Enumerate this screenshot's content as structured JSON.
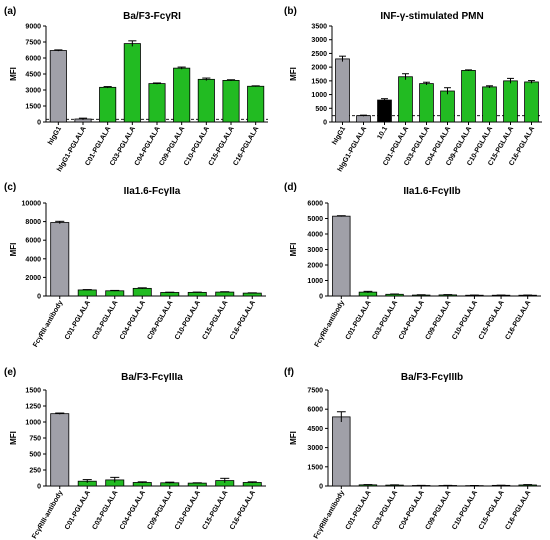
{
  "figure": {
    "panels": [
      "a",
      "b",
      "c",
      "d",
      "e",
      "f"
    ]
  },
  "chart_data": [
    {
      "panel_label": "(a)",
      "type": "bar",
      "title": "Ba/F3-FcγRI",
      "ylabel": "MFI",
      "ylim": [
        0,
        9000
      ],
      "yticks": [
        0,
        1500,
        3000,
        4500,
        6000,
        7500,
        9000
      ],
      "ytick_labels": [
        "0",
        "1500",
        "3000",
        "4500",
        "6000",
        "7500",
        "9000"
      ],
      "dashed_line": 250,
      "categories": [
        "hIgG1",
        "hIgG1-PGLALA",
        "C01-PGLALA",
        "C03-PGLALA",
        "C04-PGLALA",
        "C09-PGLALA",
        "C10-PGLALA",
        "C15-PGLALA",
        "C16-PGLALA"
      ],
      "values": [
        6700,
        280,
        3250,
        7350,
        3600,
        5050,
        4000,
        3900,
        3350
      ],
      "errors": [
        60,
        80,
        70,
        260,
        60,
        100,
        120,
        60,
        40
      ],
      "colors": [
        "#a0a0a8",
        "#a0a0a8",
        "#22bb22",
        "#22bb22",
        "#22bb22",
        "#22bb22",
        "#22bb22",
        "#22bb22",
        "#22bb22"
      ]
    },
    {
      "panel_label": "(b)",
      "type": "bar",
      "title": "INF-γ-stimulated PMN",
      "ylabel": "MFI",
      "ylim": [
        0,
        3500
      ],
      "yticks": [
        0,
        500,
        1000,
        1500,
        2000,
        2500,
        3000,
        3500
      ],
      "ytick_labels": [
        "0",
        "500",
        "1000",
        "1500",
        "2000",
        "2500",
        "3000",
        "3500"
      ],
      "dashed_line": 230,
      "categories": [
        "hIgG1",
        "hIgG1-PGLALA",
        "10.1",
        "C01-PGLALA",
        "C03-PGLALA",
        "C04-PGLALA",
        "C09-PGLALA",
        "C10-PGLALA",
        "C15-PGLALA",
        "C16-PGLALA"
      ],
      "values": [
        2300,
        230,
        800,
        1650,
        1400,
        1130,
        1880,
        1280,
        1500,
        1460
      ],
      "errors": [
        100,
        20,
        50,
        110,
        50,
        120,
        20,
        40,
        90,
        50
      ],
      "colors": [
        "#a0a0a8",
        "#a0a0a8",
        "#000000",
        "#22bb22",
        "#22bb22",
        "#22bb22",
        "#22bb22",
        "#22bb22",
        "#22bb22",
        "#22bb22"
      ]
    },
    {
      "panel_label": "(c)",
      "type": "bar",
      "title": "IIa1.6-FcγIIa",
      "ylabel": "MFI",
      "ylim": [
        0,
        10000
      ],
      "yticks": [
        0,
        2000,
        4000,
        6000,
        8000,
        10000
      ],
      "ytick_labels": [
        "0",
        "2000",
        "4000",
        "6000",
        "8000",
        "10000"
      ],
      "categories": [
        "FcγRII-antibody",
        "C01-PGLALA",
        "C03-PGLALA",
        "C04-PGLALA",
        "C09-PGLALA",
        "C10-PGLALA",
        "C15-PGLALA",
        "C16-PGLALA"
      ],
      "values": [
        7900,
        650,
        560,
        820,
        380,
        390,
        420,
        310
      ],
      "errors": [
        130,
        40,
        40,
        60,
        30,
        30,
        40,
        30
      ],
      "colors": [
        "#a0a0a8",
        "#22bb22",
        "#22bb22",
        "#22bb22",
        "#22bb22",
        "#22bb22",
        "#22bb22",
        "#22bb22"
      ]
    },
    {
      "panel_label": "(d)",
      "type": "bar",
      "title": "IIa1.6-FcγIIb",
      "ylabel": "MFI",
      "ylim": [
        0,
        6000
      ],
      "yticks": [
        0,
        1000,
        2000,
        3000,
        4000,
        5000,
        6000
      ],
      "ytick_labels": [
        "0",
        "1000",
        "2000",
        "3000",
        "4000",
        "5000",
        "6000"
      ],
      "categories": [
        "FcγRII-antibody",
        "C01-PGLALA",
        "C03-PGLALA",
        "C04-PGLALA",
        "C09-PGLALA",
        "C10-PGLALA",
        "C15-PGLALA",
        "C16-PGLALA"
      ],
      "values": [
        5150,
        250,
        110,
        60,
        70,
        50,
        50,
        50
      ],
      "errors": [
        30,
        50,
        20,
        20,
        20,
        10,
        10,
        10
      ],
      "colors": [
        "#a0a0a8",
        "#22bb22",
        "#22bb22",
        "#22bb22",
        "#22bb22",
        "#22bb22",
        "#22bb22",
        "#22bb22"
      ]
    },
    {
      "panel_label": "(e)",
      "type": "bar",
      "title": "Ba/F3-FcγIIIa",
      "ylabel": "MFI",
      "ylim": [
        0,
        1500
      ],
      "yticks": [
        0,
        250,
        500,
        750,
        1000,
        1250,
        1500
      ],
      "ytick_labels": [
        "0",
        "250",
        "500",
        "750",
        "1000",
        "1250",
        "1500"
      ],
      "categories": [
        "FcγRIII-antibody",
        "C01-PGLALA",
        "C03-PGLALA",
        "C04-PGLALA",
        "C09-PGLALA",
        "C10-PGLALA",
        "C15-PGLALA",
        "C16-PGLALA"
      ],
      "values": [
        1130,
        75,
        95,
        55,
        50,
        45,
        85,
        55
      ],
      "errors": [
        10,
        25,
        40,
        10,
        10,
        5,
        35,
        10
      ],
      "colors": [
        "#a0a0a8",
        "#22bb22",
        "#22bb22",
        "#22bb22",
        "#22bb22",
        "#22bb22",
        "#22bb22",
        "#22bb22"
      ]
    },
    {
      "panel_label": "(f)",
      "type": "bar",
      "title": "Ba/F3-FcγIIIb",
      "ylabel": "MFI",
      "ylim": [
        0,
        7500
      ],
      "yticks": [
        0,
        1500,
        3000,
        4500,
        6000,
        7500
      ],
      "ytick_labels": [
        "0",
        "1500",
        "3000",
        "4500",
        "6000",
        "7500"
      ],
      "categories": [
        "FcγRIII-antibody",
        "C01-PGLALA",
        "C03-PGLALA",
        "C04-PGLALA",
        "C09-PGLALA",
        "C10-PGLALA",
        "C15-PGLALA",
        "C16-PGLALA"
      ],
      "values": [
        5400,
        90,
        70,
        40,
        40,
        30,
        50,
        80
      ],
      "errors": [
        400,
        20,
        20,
        10,
        10,
        10,
        10,
        30
      ],
      "colors": [
        "#a0a0a8",
        "#22bb22",
        "#22bb22",
        "#22bb22",
        "#22bb22",
        "#22bb22",
        "#22bb22",
        "#22bb22"
      ]
    }
  ]
}
